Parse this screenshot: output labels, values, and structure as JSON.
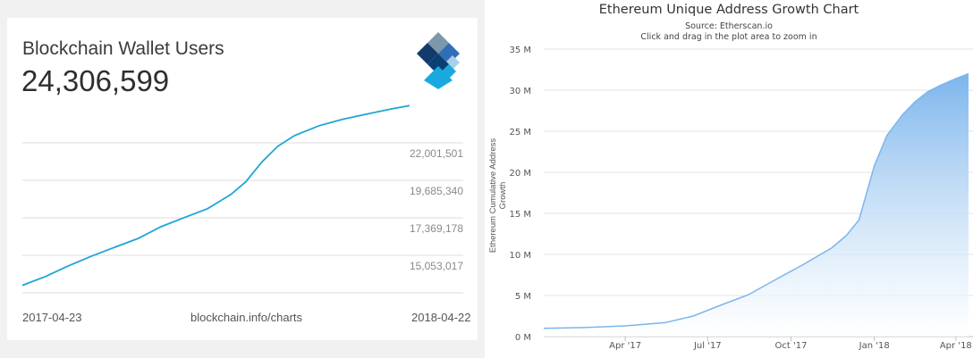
{
  "wallet_card": {
    "title": "Blockchain Wallet Users",
    "value": "24,306,599",
    "start_date": "2017-04-23",
    "end_date": "2018-04-22",
    "source": "blockchain.info/charts",
    "line_color": "#1fa5d6",
    "logo_icon": "blockchain-diamond-logo"
  },
  "ethereum_chart": {
    "title": "Ethereum Unique Address Growth Chart",
    "source": "Source: Etherscan.io",
    "subtitle": "Click and drag in the plot area to zoom in",
    "ylabel": "Ethereum Cumulative Address Growth",
    "fill_color": "#7cb5ec"
  },
  "chart_data": [
    {
      "type": "line",
      "title": "Blockchain Wallet Users",
      "ylim": [
        12736855,
        24318000
      ],
      "y_ticks": [
        {
          "value": 22001501,
          "label": "22,001,501"
        },
        {
          "value": 19685340,
          "label": "19,685,340"
        },
        {
          "value": 17369178,
          "label": "17,369,178"
        },
        {
          "value": 15053017,
          "label": "15,053,017"
        }
      ],
      "x_labels": [
        "2017-04-23",
        "2018-04-22"
      ],
      "grid": true,
      "series": [
        {
          "x": [
            "2017-04-23",
            "2017-05-15",
            "2017-06-05",
            "2017-06-27",
            "2017-07-19",
            "2017-08-10",
            "2017-08-31",
            "2017-09-22",
            "2017-10-14",
            "2017-11-05",
            "2017-11-19",
            "2017-12-04",
            "2017-12-19",
            "2018-01-04",
            "2018-01-27",
            "2018-02-18",
            "2018-03-13",
            "2018-04-04",
            "2018-04-22"
          ],
          "values": [
            13198000,
            13750000,
            14398000,
            15001000,
            15557000,
            16100000,
            16813000,
            17379000,
            17930000,
            18814000,
            19589000,
            20810000,
            21786000,
            22455000,
            23063000,
            23455000,
            23783000,
            24088000,
            24306599
          ]
        }
      ]
    },
    {
      "type": "area",
      "title": "Ethereum Unique Address Growth Chart",
      "subtitle": "Click and drag in the plot area to zoom in",
      "ylabel": "Ethereum Cumulative Address Growth",
      "ylim": [
        0,
        35000000
      ],
      "y_ticks": [
        "0 M",
        "5 M",
        "10 M",
        "15 M",
        "20 M",
        "25 M",
        "30 M",
        "35 M"
      ],
      "x_ticks": [
        "Apr '17",
        "Jul '17",
        "Oct '17",
        "Jan '18",
        "Apr '18"
      ],
      "grid": true,
      "series": [
        {
          "x": [
            "2017-01-01",
            "2017-02-15",
            "2017-04-01",
            "2017-05-15",
            "2017-06-15",
            "2017-07-15",
            "2017-08-15",
            "2017-09-15",
            "2017-10-15",
            "2017-11-15",
            "2017-12-01",
            "2017-12-15",
            "2018-01-01",
            "2018-01-15",
            "2018-02-01",
            "2018-02-15",
            "2018-03-01",
            "2018-03-15",
            "2018-04-01",
            "2018-04-15"
          ],
          "values": [
            1000000,
            1100000,
            1300000,
            1700000,
            2500000,
            3800000,
            5100000,
            7000000,
            8800000,
            10800000,
            12300000,
            14200000,
            20800000,
            24500000,
            27000000,
            28600000,
            29800000,
            30600000,
            31400000,
            32000000
          ]
        }
      ]
    }
  ]
}
